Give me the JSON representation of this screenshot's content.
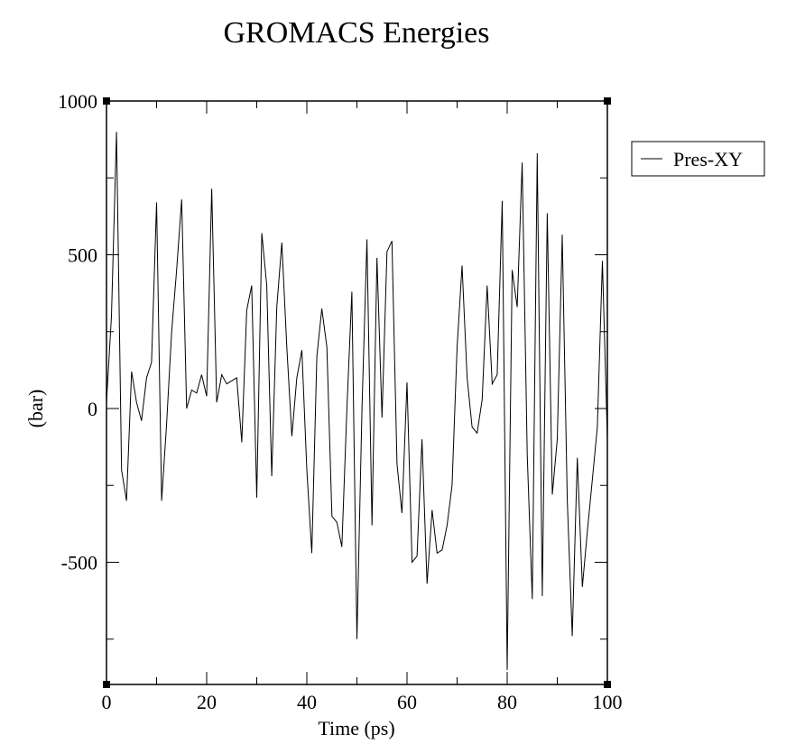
{
  "chart_data": {
    "type": "line",
    "title": "GROMACS Energies",
    "xlabel": "Time (ps)",
    "ylabel": "(bar)",
    "xlim": [
      0,
      100
    ],
    "ylim": [
      -895,
      1000
    ],
    "xticks": [
      0,
      20,
      40,
      60,
      80,
      100
    ],
    "xtick_labels": [
      "0",
      "20",
      "40",
      "60",
      "80",
      "100"
    ],
    "yticks": [
      -500,
      0,
      500,
      1000
    ],
    "ytick_labels": [
      "-500",
      "0",
      "500",
      "1000"
    ],
    "grid": false,
    "legend_position": "right",
    "line_color": "#000000",
    "series": [
      {
        "name": "Pres-XY",
        "x": [
          0,
          1,
          2,
          3,
          4,
          5,
          6,
          7,
          8,
          9,
          10,
          11,
          12,
          13,
          14,
          15,
          16,
          17,
          18,
          19,
          20,
          21,
          22,
          23,
          24,
          25,
          26,
          27,
          28,
          29,
          30,
          31,
          32,
          33,
          34,
          35,
          36,
          37,
          38,
          39,
          40,
          41,
          42,
          43,
          44,
          45,
          46,
          47,
          48,
          49,
          50,
          51,
          52,
          53,
          54,
          55,
          56,
          57,
          58,
          59,
          60,
          61,
          62,
          63,
          64,
          65,
          66,
          67,
          68,
          69,
          70,
          71,
          72,
          73,
          74,
          75,
          76,
          77,
          78,
          79,
          80,
          81,
          82,
          83,
          84,
          85,
          86,
          87,
          88,
          89,
          90,
          91,
          92,
          93,
          94,
          95,
          96,
          97,
          98,
          99,
          100
        ],
        "y": [
          20,
          300,
          900,
          -200,
          -300,
          120,
          20,
          -40,
          100,
          150,
          670,
          -300,
          -50,
          250,
          450,
          680,
          0,
          60,
          50,
          110,
          40,
          715,
          20,
          110,
          80,
          90,
          100,
          -110,
          320,
          400,
          -290,
          570,
          400,
          -220,
          330,
          540,
          200,
          -90,
          100,
          190,
          -200,
          -470,
          170,
          325,
          200,
          -350,
          -370,
          -450,
          0,
          380,
          -750,
          0,
          550,
          -380,
          490,
          -30,
          510,
          545,
          -180,
          -340,
          85,
          -500,
          -480,
          -100,
          -570,
          -330,
          -470,
          -460,
          -380,
          -250,
          200,
          465,
          100,
          -60,
          -80,
          30,
          400,
          80,
          110,
          675,
          -850,
          450,
          330,
          800,
          -150,
          -620,
          830,
          -610,
          635,
          -280,
          -100,
          565,
          -300,
          -740,
          -160,
          -580,
          -400,
          -230,
          -60,
          480,
          -100
        ]
      }
    ]
  }
}
